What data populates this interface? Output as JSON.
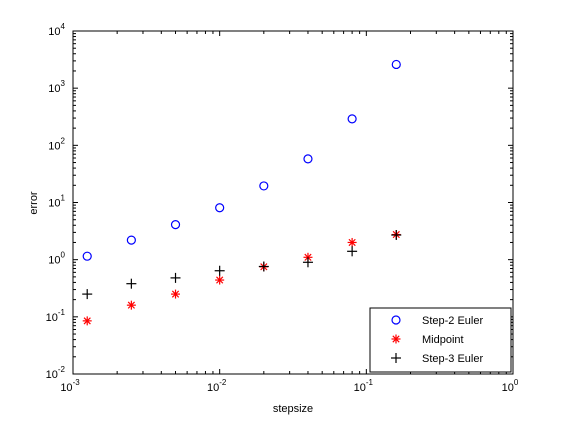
{
  "chart_data": {
    "type": "scatter",
    "title": "",
    "xlabel": "stepsize",
    "ylabel": "error",
    "x_scale": "log",
    "y_scale": "log",
    "xlim": [
      0.001,
      1
    ],
    "ylim": [
      0.01,
      10000
    ],
    "x_ticks": [
      {
        "base": "10",
        "exp": "-3"
      },
      {
        "base": "10",
        "exp": "-2"
      },
      {
        "base": "10",
        "exp": "-1"
      },
      {
        "base": "10",
        "exp": "0"
      }
    ],
    "y_ticks": [
      {
        "base": "10",
        "exp": "-2"
      },
      {
        "base": "10",
        "exp": "-1"
      },
      {
        "base": "10",
        "exp": "0"
      },
      {
        "base": "10",
        "exp": "1"
      },
      {
        "base": "10",
        "exp": "2"
      },
      {
        "base": "10",
        "exp": "3"
      },
      {
        "base": "10",
        "exp": "4"
      }
    ],
    "grid": false,
    "legend_position": "bottom-right",
    "x": [
      0.00125,
      0.0025,
      0.005,
      0.01,
      0.02,
      0.04,
      0.08,
      0.16
    ],
    "series": [
      {
        "name": "Step-2 Euler",
        "marker": "circle",
        "color": "#0000ff",
        "values": [
          1.15,
          2.2,
          4.1,
          8.1,
          19.5,
          58,
          290,
          2600
        ]
      },
      {
        "name": "Midpoint",
        "marker": "asterisk",
        "color": "#ff0000",
        "values": [
          0.085,
          0.16,
          0.25,
          0.44,
          0.75,
          1.1,
          2.0,
          2.75
        ]
      },
      {
        "name": "Step-3 Euler",
        "marker": "plus",
        "color": "#000000",
        "values": [
          0.25,
          0.38,
          0.48,
          0.64,
          0.76,
          0.9,
          1.4,
          2.7
        ]
      }
    ]
  }
}
